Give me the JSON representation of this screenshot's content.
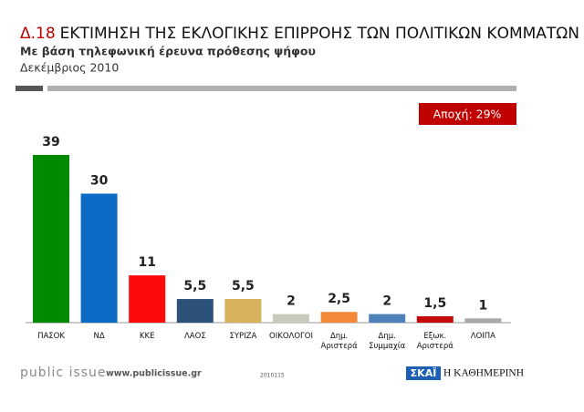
{
  "chart_data": {
    "type": "bar",
    "title_number": "Δ.18",
    "title": "ΕΚΤΙΜΗΣΗ ΤΗΣ ΕΚΛΟΓΙΚΗΣ ΕΠΙΡΡΟΗΣ ΤΩΝ ΠΟΛΙΤΙΚΩΝ ΚΟΜΜΑΤΩΝ",
    "subtitle": "Με βάση τηλεφωνική έρευνα πρόθεσης ψήφου",
    "date": "Δεκέμβριος 2010",
    "annotation": "Αποχή: 29%",
    "categories": [
      "ΠΑΣΟΚ",
      "ΝΔ",
      "ΚΚΕ",
      "ΛΑΟΣ",
      "ΣΥΡΙΖΑ",
      "ΟΙΚΟΛΟΓΟΙ",
      "Δημ. Αριστερά",
      "Δημ. Συμμαχία",
      "Εξωκ. Αριστερά",
      "ΛΟΙΠΑ"
    ],
    "values": [
      39,
      30,
      11,
      5.5,
      5.5,
      2,
      2.5,
      2,
      1.5,
      1
    ],
    "value_labels": [
      "39",
      "30",
      "11",
      "5,5",
      "5,5",
      "2",
      "2,5",
      "2",
      "1,5",
      "1"
    ],
    "colors": [
      "#008a00",
      "#0a6ac4",
      "#ff0a0a",
      "#2d5279",
      "#d6b25c",
      "#c8cabb",
      "#f28a3a",
      "#4f82b8",
      "#c40a0a",
      "#a8a8a8"
    ],
    "footer": {
      "brand": "public issue",
      "url": "www.publicissue.gr",
      "code": "2010115",
      "logo1": "ΣΚΑΪ",
      "logo2": "Η ΚΑΘΗΜΕΡΙΝΗ"
    }
  }
}
